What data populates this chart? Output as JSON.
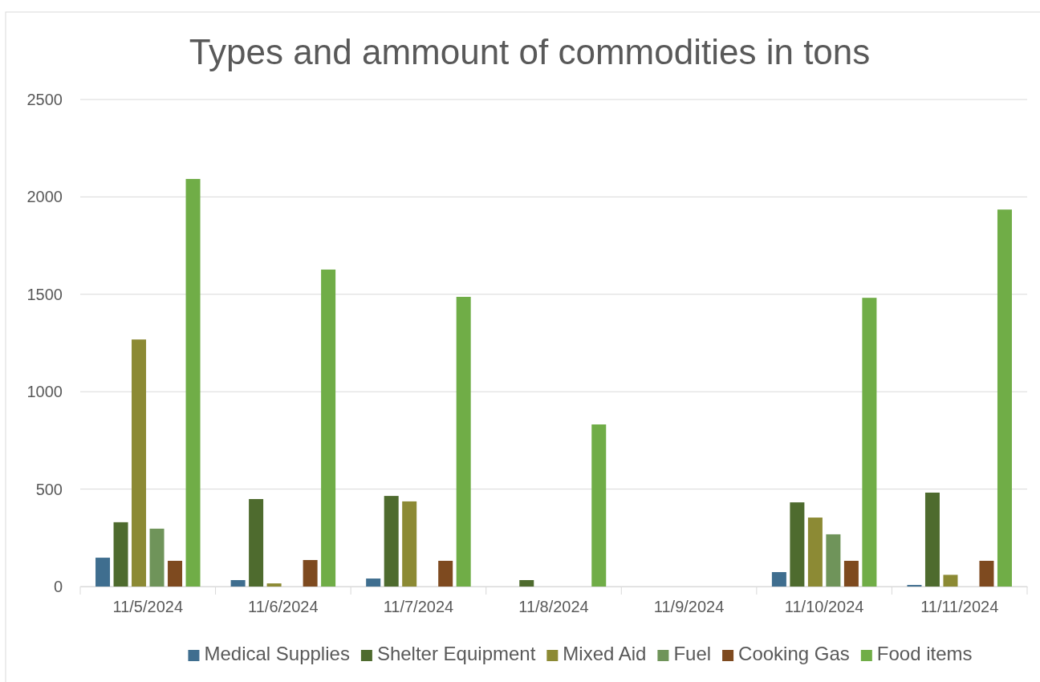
{
  "chart_data": {
    "type": "bar",
    "title": "Types and ammount of commodities in tons",
    "categories": [
      "11/5/2024",
      "11/6/2024",
      "11/7/2024",
      "11/8/2024",
      "11/9/2024",
      "11/10/2024",
      "11/11/2024"
    ],
    "series": [
      {
        "name": "Medical Supplies",
        "color": "#3f6e8f",
        "values": [
          148,
          33,
          41,
          0,
          0,
          74,
          8
        ]
      },
      {
        "name": "Shelter Equipment",
        "color": "#4e6b2e",
        "values": [
          330,
          449,
          465,
          33,
          0,
          432,
          482
        ]
      },
      {
        "name": "Mixed Aid",
        "color": "#8c8a34",
        "values": [
          1268,
          16,
          437,
          0,
          0,
          354,
          60
        ]
      },
      {
        "name": "Fuel",
        "color": "#6f945a",
        "values": [
          297,
          0,
          0,
          0,
          0,
          268,
          0
        ]
      },
      {
        "name": "Cooking Gas",
        "color": "#7e4a1f",
        "values": [
          132,
          136,
          132,
          0,
          0,
          132,
          132
        ]
      },
      {
        "name": "Food items",
        "color": "#70ad47",
        "values": [
          2092,
          1627,
          1487,
          832,
          0,
          1482,
          1935
        ]
      }
    ],
    "ylim": [
      0,
      2500
    ],
    "yticks": [
      0,
      500,
      1000,
      1500,
      2000,
      2500
    ],
    "grid": "y",
    "legend": "bottom"
  }
}
